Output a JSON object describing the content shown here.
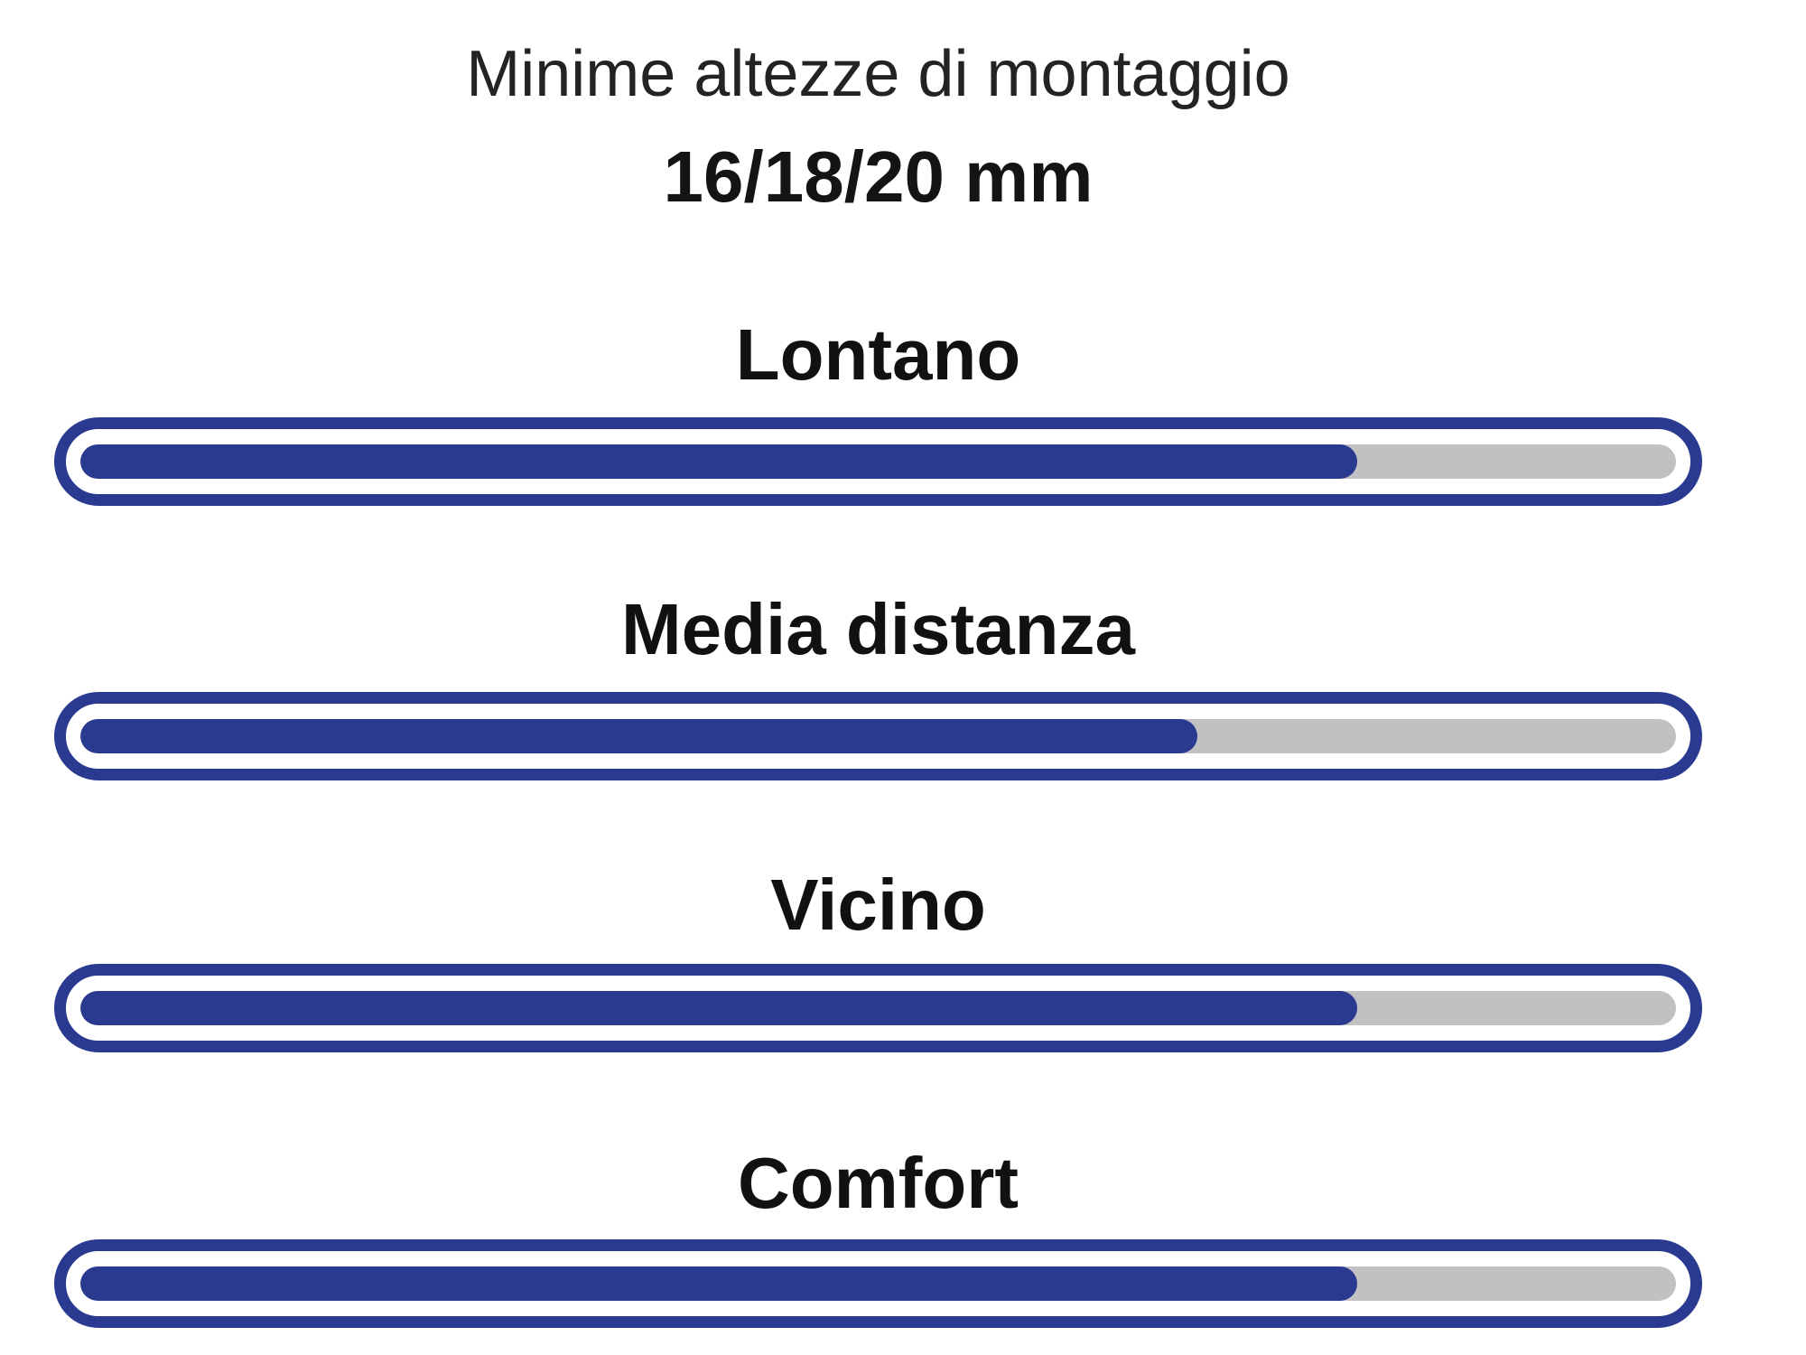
{
  "chart_data": {
    "type": "bar",
    "orientation": "horizontal",
    "title": "Minime altezze di montaggio",
    "subtitle": "16/18/20 mm",
    "categories": [
      "Lontano",
      "Media distanza",
      "Vicino",
      "Comfort"
    ],
    "values": [
      80,
      70,
      80,
      80
    ],
    "value_unit": "percent_of_track_filled",
    "xlim": [
      0,
      100
    ],
    "grid": false,
    "legend": "none",
    "colors": {
      "bar_fill": "#2b3a91",
      "bar_outline": "#2b3a91",
      "bar_track": "#c1c1c3",
      "title_text": "#232323",
      "label_text": "#111111",
      "background": "#ffffff"
    }
  }
}
